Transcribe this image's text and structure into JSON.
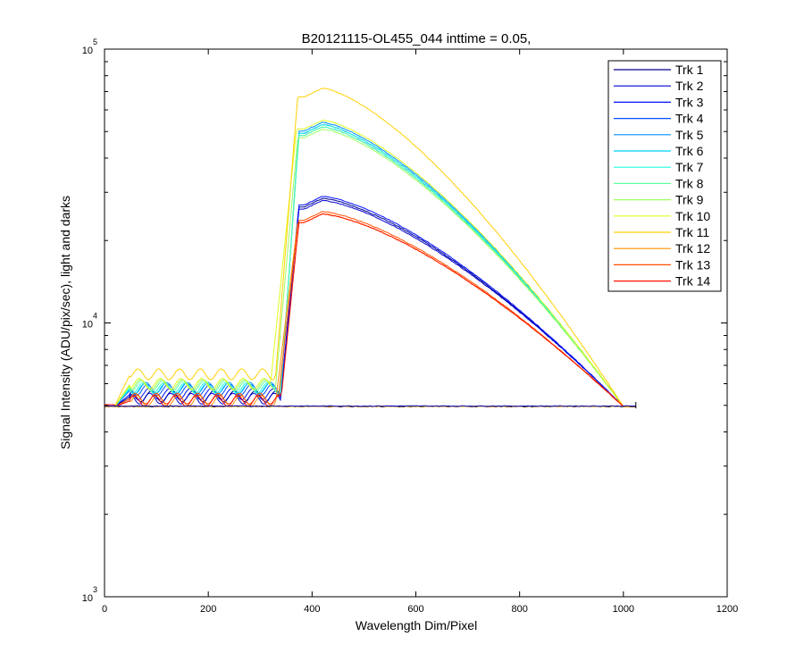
{
  "chart_data": {
    "type": "line",
    "title": "B20121115-OL455_044 inttime = 0.05,",
    "xlabel": "Wavelength Dim/Pixel",
    "ylabel": "Signal Intensity (ADU/pix/sec), light and darks",
    "xlim": [
      0,
      1200
    ],
    "ylim": [
      1000,
      100000
    ],
    "yscale": "log",
    "xticks": [
      "0",
      "200",
      "400",
      "600",
      "800",
      "1000",
      "1200"
    ],
    "xtick_values": [
      0,
      200,
      400,
      600,
      800,
      1000,
      1200
    ],
    "yticks": [
      {
        "value": 1000,
        "base": "10",
        "exp": "3"
      },
      {
        "value": 10000,
        "base": "10",
        "exp": "4"
      },
      {
        "value": 100000,
        "base": "10",
        "exp": "5"
      }
    ],
    "grid": false,
    "legend_position": "top-right",
    "dark_level": 4950,
    "dark_x_range": [
      0,
      1024
    ],
    "series": [
      {
        "name": "Trk 1",
        "color": "#00008f",
        "peak": 28500,
        "edge": 340,
        "plateau": 5400
      },
      {
        "name": "Trk 2",
        "color": "#0000cf",
        "peak": 28000,
        "edge": 340,
        "plateau": 5300
      },
      {
        "name": "Trk 3",
        "color": "#0010ff",
        "peak": 29000,
        "edge": 340,
        "plateau": 5500
      },
      {
        "name": "Trk 4",
        "color": "#0050ff",
        "peak": 53000,
        "edge": 340,
        "plateau": 5700
      },
      {
        "name": "Trk 5",
        "color": "#0090ff",
        "peak": 54000,
        "edge": 340,
        "plateau": 5800
      },
      {
        "name": "Trk 6",
        "color": "#00d0ff",
        "peak": 52000,
        "edge": 340,
        "plateau": 5750
      },
      {
        "name": "Trk 7",
        "color": "#20ffdf",
        "peak": 53000,
        "edge": 340,
        "plateau": 5800
      },
      {
        "name": "Trk 8",
        "color": "#60ff9f",
        "peak": 52000,
        "edge": 340,
        "plateau": 5900
      },
      {
        "name": "Trk 9",
        "color": "#9fff60",
        "peak": 51000,
        "edge": 330,
        "plateau": 5950
      },
      {
        "name": "Trk 10",
        "color": "#dfff20",
        "peak": 55000,
        "edge": 320,
        "plateau": 6000
      },
      {
        "name": "Trk 11",
        "color": "#ffd000",
        "peak": 72000,
        "edge": 330,
        "plateau": 6500
      },
      {
        "name": "Trk 12",
        "color": "#ff9000",
        "peak": 25000,
        "edge": 330,
        "plateau": 5200
      },
      {
        "name": "Trk 13",
        "color": "#ff5000",
        "peak": 25500,
        "edge": 335,
        "plateau": 5300
      },
      {
        "name": "Trk 14",
        "color": "#ff1000",
        "peak": 25000,
        "edge": 340,
        "plateau": 5200
      }
    ]
  }
}
